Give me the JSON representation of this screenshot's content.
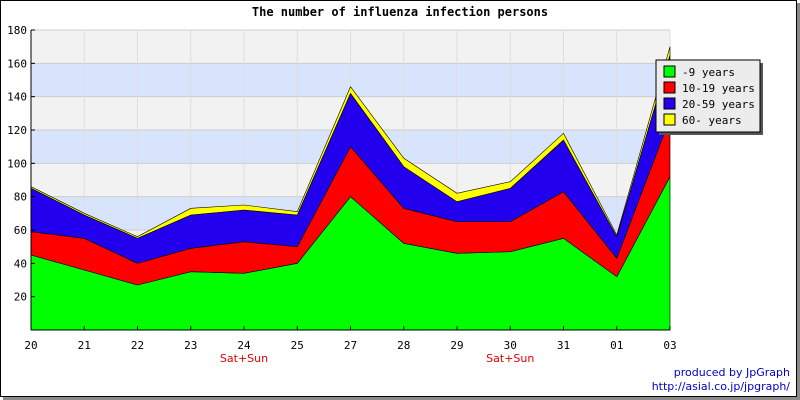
{
  "chart_data": {
    "type": "area",
    "stacked": true,
    "title": "The number of influenza infection persons",
    "x": [
      "20",
      "21",
      "22",
      "23",
      "24",
      "25",
      "27",
      "28",
      "29",
      "30",
      "31",
      "01",
      "03"
    ],
    "x_annotations": [
      {
        "x": "24",
        "text": "Sat+Sun"
      },
      {
        "x": "30",
        "text": "Sat+Sun"
      }
    ],
    "ylim": [
      0,
      180
    ],
    "yticks": [
      20,
      40,
      60,
      80,
      100,
      120,
      140,
      160,
      180
    ],
    "grid": true,
    "band_colors": [
      "#f2f2f2",
      "#d8e4fb"
    ],
    "legend_position": "top-right",
    "series": [
      {
        "name": "-9 years",
        "color": "#00ff00",
        "values": [
          45,
          36,
          27,
          35,
          34,
          40,
          80,
          52,
          46,
          47,
          55,
          32,
          92
        ]
      },
      {
        "name": "10-19 years",
        "color": "#ff0000",
        "values": [
          14,
          19,
          13,
          14,
          19,
          10,
          30,
          21,
          19,
          18,
          28,
          11,
          35
        ]
      },
      {
        "name": "20-59 years",
        "color": "#2200ee",
        "values": [
          26,
          14,
          15,
          20,
          19,
          19,
          32,
          25,
          12,
          20,
          31,
          13,
          38
        ]
      },
      {
        "name": "60- years",
        "color": "#ffff00",
        "values": [
          1,
          1,
          1,
          4,
          3,
          2,
          4,
          5,
          5,
          4,
          4,
          1,
          5
        ]
      }
    ]
  },
  "credit": {
    "line1": "produced by JpGraph",
    "line2": "http://asial.co.jp/jpgraph/"
  }
}
